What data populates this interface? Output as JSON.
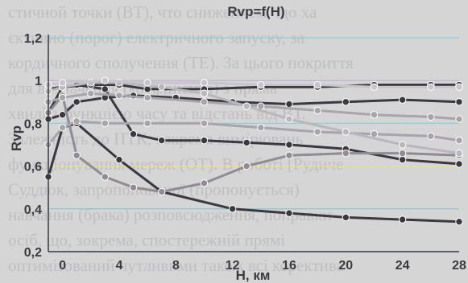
{
  "background_text": [
    "стичной точки (ВТ), что снижением, що ха",
    "єктивно (порог) електричного запуску, за",
    "кордичного сполучення (ТЕ). За цього покриття",
    "для визначення (коефіцієнта) з пряма",
    "хвилі з функцією часу та відстань від ВТ.",
    "Залежність до ПТК, зокрема вимірювань",
    "функціонування мереж (ОТ). В роботі [Рудиче",
    "Суддюк, запропонованої (пропонується)",
    "навчання (брака) розповсюдження, поправки",
    "осіб, що, зокрема, спостережній прямі",
    "оптимізований чутливими також всі коректива"
  ],
  "chart_data": {
    "type": "line",
    "title": "Rvp=f(H)",
    "xlabel": "H, км",
    "ylabel": "Rvp",
    "xlim": [
      -1,
      28
    ],
    "ylim": [
      0.2,
      1.2
    ],
    "xticks": [
      0,
      4,
      8,
      12,
      16,
      20,
      24,
      28
    ],
    "yticks": [
      0.2,
      0.4,
      0.6,
      0.8,
      1.0,
      1.2
    ],
    "ytick_labels": [
      "0,2",
      "0,4",
      "0,6",
      "0,8",
      "1",
      "1,2"
    ],
    "grid": "horizontal",
    "hgrid_colors": [
      "#8ad0d8",
      "#7fc6cf",
      "#e8e18a",
      "#8ad0d8",
      "#c8a7d6",
      "#8ad0d8"
    ],
    "series": [
      {
        "color": "#3b3940",
        "marker": true,
        "x": [
          -1,
          0,
          1,
          4,
          7,
          12,
          16,
          20,
          24,
          28
        ],
        "y": [
          0.55,
          0.78,
          0.8,
          0.63,
          0.48,
          0.4,
          0.38,
          0.36,
          0.35,
          0.34
        ]
      },
      {
        "color": "#3b3940",
        "marker": true,
        "x": [
          -1,
          0,
          1,
          3,
          5,
          7,
          10,
          13,
          16,
          20,
          24,
          28
        ],
        "y": [
          0.85,
          0.97,
          0.98,
          0.96,
          0.75,
          0.72,
          0.72,
          0.71,
          0.7,
          0.68,
          0.63,
          0.61
        ]
      },
      {
        "color": "#3b3940",
        "marker": true,
        "x": [
          -1,
          0,
          1,
          3,
          5,
          8,
          12,
          16,
          20,
          24,
          28
        ],
        "y": [
          0.82,
          0.84,
          0.9,
          0.92,
          0.93,
          0.92,
          0.9,
          0.89,
          0.9,
          0.91,
          0.9
        ]
      },
      {
        "color": "#3b3940",
        "marker": true,
        "x": [
          -1,
          0,
          2,
          4,
          6,
          10,
          14,
          18,
          22,
          26,
          28
        ],
        "y": [
          0.96,
          0.97,
          0.98,
          0.98,
          0.96,
          0.96,
          0.97,
          0.97,
          0.98,
          0.98,
          0.98
        ]
      },
      {
        "color": "#8f8c93",
        "marker": true,
        "x": [
          -1,
          0,
          1,
          3,
          5,
          7,
          10,
          13,
          16,
          20,
          24,
          28
        ],
        "y": [
          0.85,
          0.93,
          0.65,
          0.55,
          0.5,
          0.48,
          0.52,
          0.6,
          0.65,
          0.66,
          0.66,
          0.65
        ]
      },
      {
        "color": "#a7a4aa",
        "marker": true,
        "x": [
          -1,
          0,
          1,
          3,
          6,
          10,
          14,
          18,
          22,
          26,
          28
        ],
        "y": [
          0.7,
          0.78,
          0.81,
          0.8,
          0.8,
          0.8,
          0.78,
          0.76,
          0.75,
          0.74,
          0.72
        ]
      },
      {
        "color": "#a7a4aa",
        "marker": true,
        "x": [
          -1,
          0,
          2,
          4,
          6,
          10,
          14,
          18,
          22,
          26,
          28
        ],
        "y": [
          0.9,
          0.92,
          0.94,
          0.93,
          0.92,
          0.9,
          0.88,
          0.86,
          0.84,
          0.83,
          0.82
        ]
      },
      {
        "color": "#b9b7bc",
        "marker": true,
        "x": [
          -1,
          0,
          2,
          4,
          7,
          10,
          13,
          16,
          20,
          24,
          28
        ],
        "y": [
          0.95,
          0.97,
          0.99,
          0.99,
          0.97,
          0.94,
          0.88,
          0.82,
          0.76,
          0.7,
          0.66
        ]
      },
      {
        "color": "#c7c5ca",
        "marker": true,
        "x": [
          -1,
          0,
          3,
          6,
          10,
          14,
          18,
          22,
          26,
          28
        ],
        "y": [
          0.98,
          0.99,
          1.0,
          0.99,
          0.99,
          0.98,
          0.98,
          0.97,
          0.97,
          0.97
        ]
      }
    ]
  }
}
